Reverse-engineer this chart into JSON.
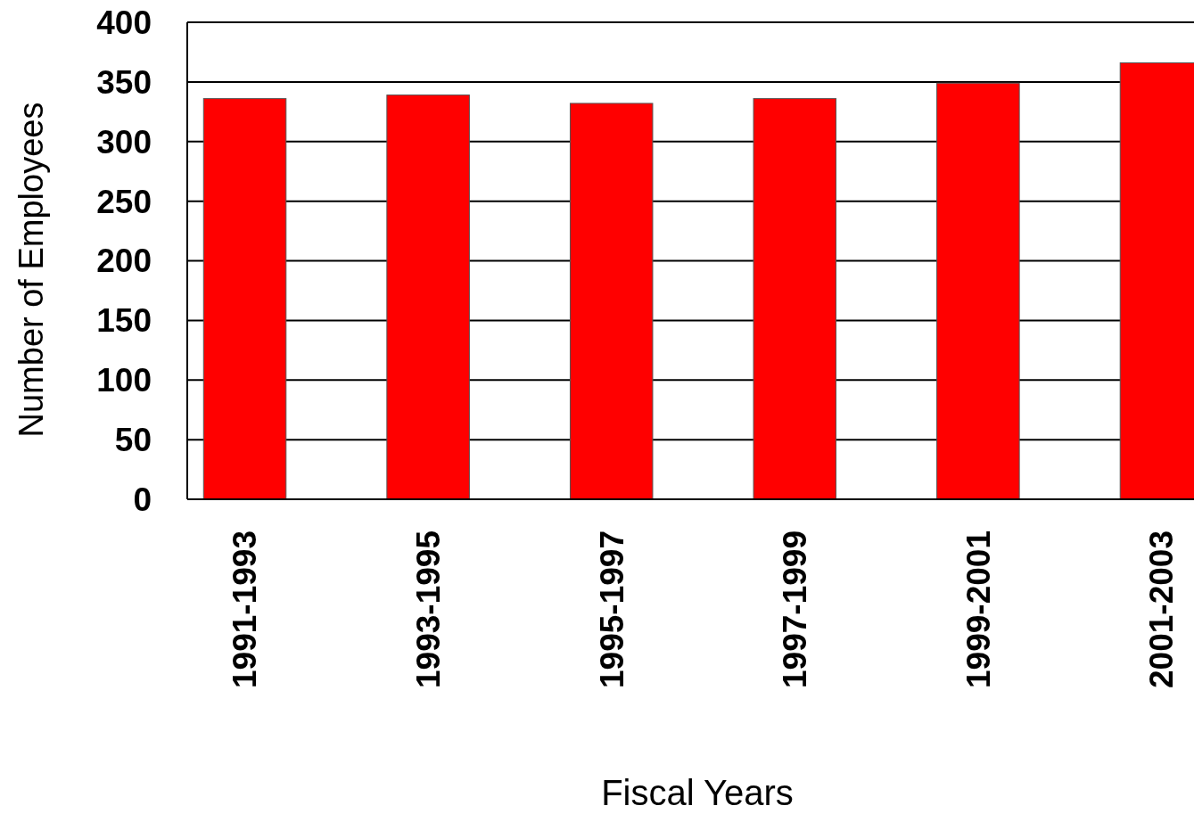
{
  "chart_data": {
    "type": "bar",
    "xlabel": "Fiscal Years",
    "ylabel": "Number of Employees",
    "categories": [
      "1991-1993",
      "1993-1995",
      "1995-1997",
      "1997-1999",
      "1999-2001",
      "2001-2003"
    ],
    "values": [
      336,
      339,
      332,
      336,
      349,
      366
    ],
    "color": "#ff0000",
    "ylim": [
      0,
      400
    ],
    "yticks": [
      0,
      50,
      100,
      150,
      200,
      250,
      300,
      350,
      400
    ],
    "grid": "y"
  }
}
